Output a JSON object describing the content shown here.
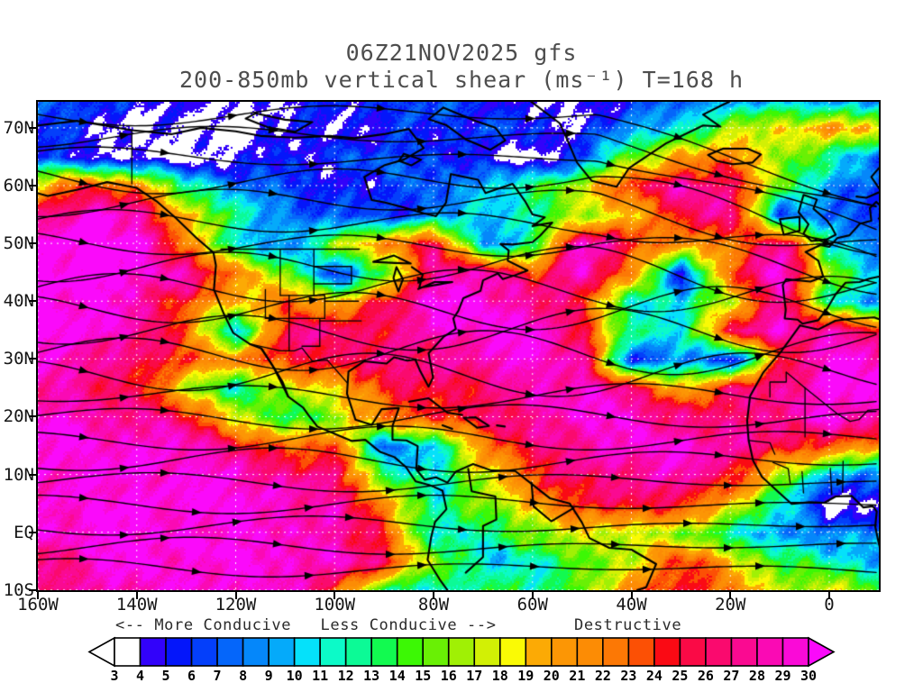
{
  "title": {
    "line1": "06Z21NOV2025 gfs",
    "line2": "200-850mb vertical shear (ms⁻¹) T=168 h"
  },
  "axes": {
    "lat_labels": [
      {
        "label": "70N",
        "value": 70
      },
      {
        "label": "60N",
        "value": 60
      },
      {
        "label": "50N",
        "value": 50
      },
      {
        "label": "40N",
        "value": 40
      },
      {
        "label": "30N",
        "value": 30
      },
      {
        "label": "20N",
        "value": 20
      },
      {
        "label": "10N",
        "value": 10
      },
      {
        "label": "EQ",
        "value": 0
      },
      {
        "label": "10S",
        "value": -10
      }
    ],
    "lon_labels": [
      {
        "label": "160W",
        "value": -160
      },
      {
        "label": "140W",
        "value": -140
      },
      {
        "label": "120W",
        "value": -120
      },
      {
        "label": "100W",
        "value": -100
      },
      {
        "label": "80W",
        "value": -80
      },
      {
        "label": "60W",
        "value": -60
      },
      {
        "label": "40W",
        "value": -40
      },
      {
        "label": "20W",
        "value": -20
      },
      {
        "label": "0",
        "value": 0
      }
    ]
  },
  "legend": {
    "left": "<-- More Conducive   Less Conducive -->",
    "right": "Destructive"
  },
  "colorbar": {
    "tick_labels": [
      "3",
      "4",
      "5",
      "6",
      "7",
      "8",
      "9",
      "10",
      "11",
      "12",
      "13",
      "14",
      "15",
      "16",
      "17",
      "18",
      "19",
      "20",
      "21",
      "22",
      "23",
      "24",
      "25",
      "26",
      "27",
      "28",
      "29",
      "30"
    ],
    "outline_color": "#000000"
  },
  "chart_data": {
    "type": "heatmap",
    "title": "06Z21NOV2025 gfs",
    "subtitle": "200-850mb vertical shear (ms⁻¹) T=168 h",
    "model": "gfs",
    "init_time": "06Z21NOV2025",
    "forecast_hour_text": "T=168 h",
    "variable": "200-850mb vertical shear",
    "units": "ms⁻¹",
    "lon_range": [
      -160,
      10
    ],
    "lat_range": [
      -10,
      74.5
    ],
    "grid_lons": [
      -160,
      -150,
      -140,
      -130,
      -120,
      -110,
      -100,
      -90,
      -80,
      -70,
      -60,
      -50,
      -40,
      -30,
      -20,
      -10,
      0,
      10
    ],
    "grid_lats": [
      75,
      70,
      65,
      60,
      55,
      50,
      45,
      40,
      35,
      30,
      25,
      20,
      15,
      10,
      5,
      0,
      -5,
      -10
    ],
    "values_grid": [
      [
        7,
        6,
        5,
        4,
        4,
        5,
        6,
        6,
        7,
        5,
        3,
        4,
        6,
        8,
        9,
        9,
        8,
        7
      ],
      [
        6,
        5,
        4,
        3,
        3,
        4,
        5,
        5,
        6,
        7,
        5,
        5,
        8,
        12,
        16,
        19,
        21,
        18
      ],
      [
        7,
        5,
        3,
        3,
        4,
        5,
        6,
        7,
        7,
        4,
        3,
        6,
        16,
        20,
        22,
        17,
        12,
        8
      ],
      [
        20,
        25,
        22,
        12,
        8,
        6,
        5,
        6,
        8,
        10,
        13,
        18,
        24,
        29,
        26,
        16,
        9,
        6
      ],
      [
        27,
        30,
        28,
        20,
        12,
        9,
        6,
        6,
        8,
        10,
        13,
        16,
        20,
        24,
        29,
        6,
        8,
        7
      ],
      [
        31,
        32,
        31,
        22,
        10,
        8,
        16,
        22,
        27,
        8,
        13,
        30,
        25,
        20,
        22,
        29,
        12,
        8
      ],
      [
        30,
        31,
        30,
        29,
        22,
        16,
        5,
        14,
        27,
        29,
        24,
        30,
        22,
        5,
        24,
        30,
        16,
        10
      ],
      [
        31,
        30,
        28,
        24,
        18,
        24,
        18,
        26,
        30,
        30,
        28,
        24,
        12,
        10,
        18,
        28,
        12,
        9
      ],
      [
        30,
        30,
        29,
        22,
        10,
        26,
        28,
        25,
        29,
        30,
        30,
        26,
        12,
        12,
        26,
        29,
        28,
        24
      ],
      [
        29,
        28,
        26,
        24,
        22,
        25,
        26,
        27,
        27,
        28,
        30,
        28,
        5,
        10,
        4,
        24,
        30,
        29
      ],
      [
        28,
        27,
        26,
        16,
        12,
        16,
        20,
        24,
        26,
        26,
        28,
        30,
        26,
        20,
        26,
        28,
        30,
        30
      ],
      [
        30,
        29,
        28,
        26,
        18,
        12,
        16,
        22,
        25,
        26,
        28,
        30,
        29,
        27,
        26,
        28,
        30,
        28
      ],
      [
        31,
        30,
        30,
        29,
        26,
        22,
        24,
        7,
        11,
        22,
        26,
        28,
        29,
        30,
        28,
        26,
        24,
        20
      ],
      [
        30,
        30,
        30,
        30,
        29,
        28,
        26,
        14,
        10,
        18,
        24,
        27,
        28,
        28,
        26,
        16,
        10,
        8
      ],
      [
        30,
        30,
        30,
        30,
        30,
        29,
        28,
        22,
        12,
        16,
        20,
        24,
        26,
        24,
        20,
        12,
        3,
        4
      ],
      [
        29,
        30,
        30,
        30,
        30,
        30,
        28,
        24,
        10,
        12,
        16,
        18,
        18,
        16,
        12,
        8,
        8,
        9
      ],
      [
        26,
        29,
        30,
        30,
        30,
        30,
        29,
        26,
        16,
        10,
        12,
        14,
        18,
        24,
        20,
        14,
        12,
        10
      ],
      [
        26,
        28,
        29,
        30,
        30,
        30,
        24,
        12,
        10,
        14,
        12,
        16,
        22,
        26,
        22,
        16,
        18,
        14
      ]
    ],
    "levels": [
      3,
      4,
      5,
      6,
      7,
      8,
      9,
      10,
      11,
      12,
      13,
      14,
      15,
      16,
      17,
      18,
      19,
      20,
      21,
      22,
      23,
      24,
      25,
      26,
      27,
      28,
      29,
      30
    ],
    "palette": [
      "#ffffff",
      "#3202fa",
      "#0416fa",
      "#043ffa",
      "#0566fa",
      "#0587fa",
      "#05aafa",
      "#05e1fa",
      "#0cfac8",
      "#0cfa96",
      "#12fa50",
      "#3cf805",
      "#69f005",
      "#a0f005",
      "#d2f005",
      "#fafa05",
      "#fcaa05",
      "#fc9605",
      "#fc8c05",
      "#fc7805",
      "#fc5005",
      "#fa0a14",
      "#fa0a46",
      "#fa0a6e",
      "#fa0a91",
      "#fa0ab4",
      "#fa0ad7"
    ],
    "over_color": "#fa0afa",
    "under_color": "#ffffff",
    "gridlines": {
      "lat_step": 10,
      "lon_step": 20,
      "style": "dotted-white"
    },
    "legend_position": "bottom"
  }
}
